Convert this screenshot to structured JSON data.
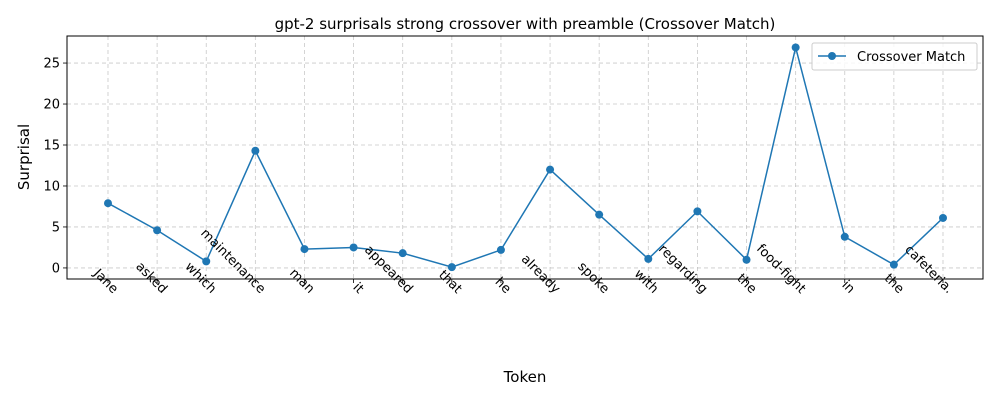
{
  "chart_data": {
    "type": "line",
    "title": "gpt-2 surprisals strong crossover with preamble (Crossover Match)",
    "xlabel": "Token",
    "ylabel": "Surprisal",
    "categories": [
      "Jane",
      "asked",
      "which",
      "maintenance",
      "man",
      "it",
      "appeared",
      "that",
      "he",
      "already",
      "spoke",
      "with",
      "regarding",
      "the",
      "food-fight",
      "in",
      "the",
      "cafeteria."
    ],
    "series": [
      {
        "name": "Crossover Match",
        "color": "#1f77b4",
        "marker": "circle",
        "values": [
          7.9,
          4.6,
          0.8,
          14.3,
          2.3,
          2.5,
          1.8,
          0.1,
          2.2,
          12.0,
          6.5,
          1.1,
          6.9,
          1.0,
          26.9,
          3.8,
          0.4,
          6.1
        ]
      }
    ],
    "ylim": [
      -1.35,
      28.3
    ],
    "yticks": [
      0,
      5,
      10,
      15,
      20,
      25
    ],
    "grid": true,
    "legend_position": "top-right"
  }
}
